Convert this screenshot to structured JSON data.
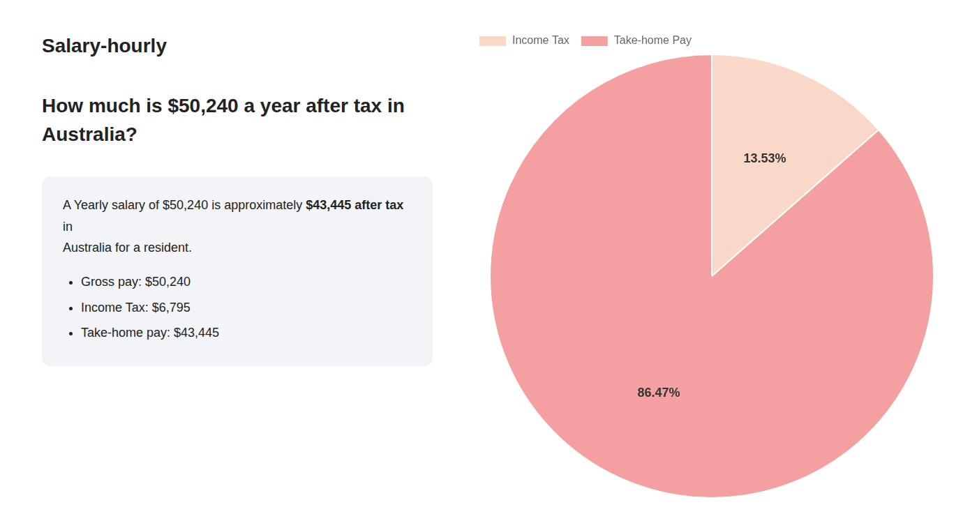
{
  "chart_data": {
    "type": "pie",
    "title": "How much is $50,240 a year after tax in Australia?",
    "annotations": [
      "S",
      "alary-hourly",
      "A Yearly salary of $50,240 is approximately ",
      "$43,445 after tax",
      " in",
      "Australia for a resident.",
      "Gross pay: $50,240",
      "Income Tax: $6,795",
      "Take-home pay: $43,445"
    ],
    "categories": [
      "Income Tax",
      "Take-home Pay"
    ],
    "values": [
      13.53,
      86.47
    ],
    "value_labels": [
      "13.53%",
      "86.47%"
    ],
    "colors": [
      "#fad8c8",
      "#f5a0a0"
    ],
    "data_labels": true,
    "legend": "upper left"
  }
}
